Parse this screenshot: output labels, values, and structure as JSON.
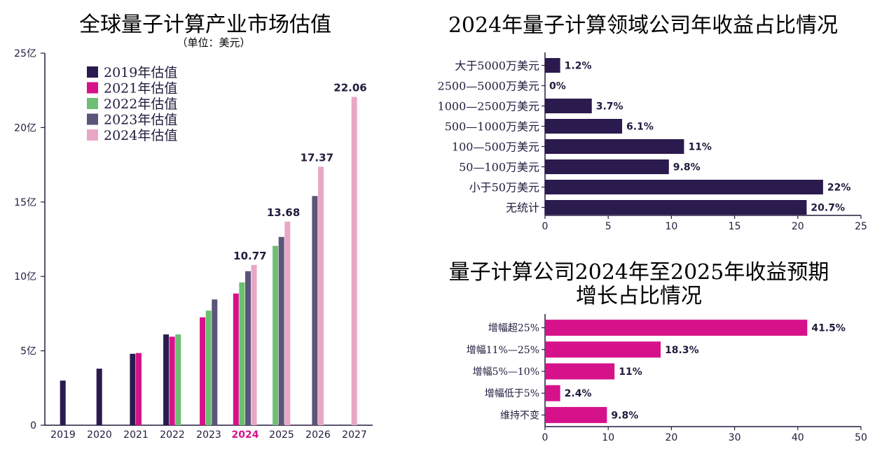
{
  "charts": {
    "left": {
      "title": "全球量子计算产业市场估值",
      "subtitle": "（单位：美元）",
      "highlight_color": "#d6128b"
    },
    "top_right": {
      "title": "2024年量子计算领域公司年收益占比情况"
    },
    "bottom_right": {
      "title_line1": "量子计算公司2024年至2025年收益预期",
      "title_line2": "增长占比情况"
    }
  },
  "chart_data": [
    {
      "type": "bar",
      "title": "全球量子计算产业市场估值",
      "subtitle": "（单位：美元）",
      "categories": [
        "2019",
        "2020",
        "2021",
        "2022",
        "2023",
        "2024",
        "2025",
        "2026",
        "2027"
      ],
      "highlighted_category": "2024",
      "y_tick_labels": [
        "0",
        "5亿",
        "10亿",
        "15亿",
        "20亿",
        "25亿"
      ],
      "ylim": [
        0,
        25
      ],
      "legend_position": "top-left",
      "series": [
        {
          "name": "2019年估值",
          "color": "#2b1a4e",
          "values": [
            3.0,
            3.8,
            4.8,
            6.1,
            null,
            null,
            null,
            null,
            null
          ]
        },
        {
          "name": "2021年估值",
          "color": "#d6128b",
          "values": [
            null,
            null,
            4.85,
            5.95,
            7.25,
            8.85,
            null,
            null,
            null
          ]
        },
        {
          "name": "2022年估值",
          "color": "#6dbf73",
          "values": [
            null,
            null,
            null,
            6.1,
            7.7,
            9.6,
            12.05,
            null,
            null
          ]
        },
        {
          "name": "2023年估值",
          "color": "#5b5579",
          "values": [
            null,
            null,
            null,
            null,
            8.45,
            10.35,
            12.65,
            15.4,
            null
          ]
        },
        {
          "name": "2024年估值",
          "color": "#e9a7c6",
          "values": [
            null,
            null,
            null,
            null,
            null,
            10.77,
            13.68,
            17.37,
            22.06
          ]
        }
      ],
      "data_labels": [
        "10.77",
        "13.68",
        "17.37",
        "22.06"
      ]
    },
    {
      "type": "bar",
      "orientation": "horizontal",
      "title": "2024年量子计算领域公司年收益占比情况",
      "color": "#2b1a4e",
      "categories": [
        "大于5000万美元",
        "2500—5000万美元",
        "1000—2500万美元",
        "500—1000万美元",
        "100—500万美元",
        "50—100万美元",
        "小于50万美元",
        "无统计"
      ],
      "values": [
        1.2,
        0,
        3.7,
        6.1,
        11,
        9.8,
        22,
        20.7
      ],
      "value_labels": [
        "1.2%",
        "0%",
        "3.7%",
        "6.1%",
        "11%",
        "9.8%",
        "22%",
        "20.7%"
      ],
      "x_tick_labels": [
        "0",
        "5",
        "10",
        "15",
        "20",
        "25"
      ],
      "xlim": [
        0,
        25
      ]
    },
    {
      "type": "bar",
      "orientation": "horizontal",
      "title": "量子计算公司2024年至2025年收益预期增长占比情况",
      "color": "#d6128b",
      "categories": [
        "增幅超25%",
        "增幅11%—25%",
        "增幅5%—10%",
        "增幅低于5%",
        "维持不变"
      ],
      "values": [
        41.5,
        18.3,
        11,
        2.4,
        9.8
      ],
      "value_labels": [
        "41.5%",
        "18.3%",
        "11%",
        "2.4%",
        "9.8%"
      ],
      "x_tick_labels": [
        "0",
        "10",
        "20",
        "30",
        "40",
        "50"
      ],
      "xlim": [
        0,
        50
      ]
    }
  ]
}
